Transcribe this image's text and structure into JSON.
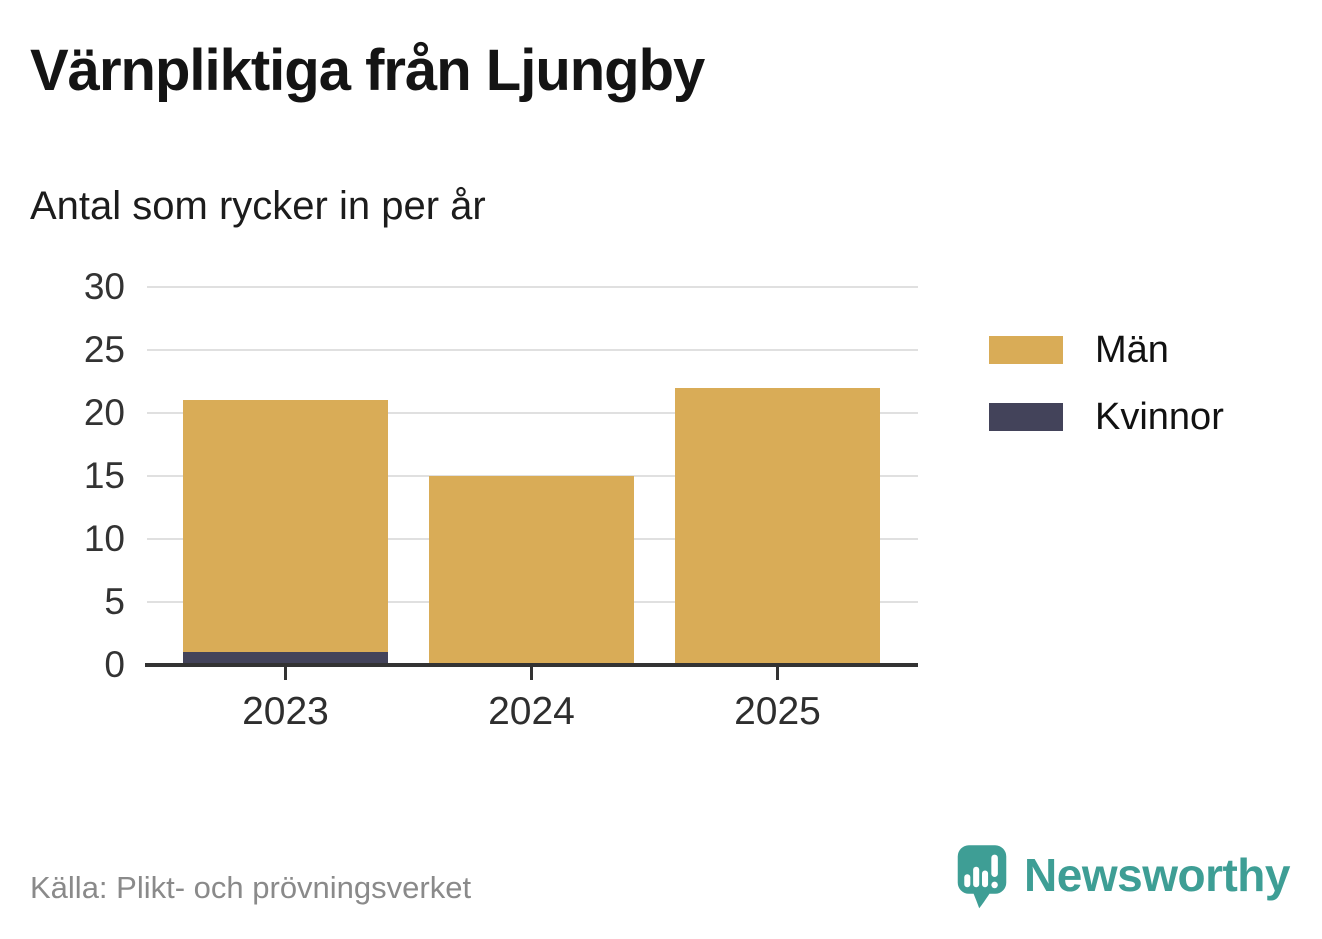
{
  "header": {
    "title": "Värnpliktiga från Ljungby",
    "subtitle": "Antal som rycker in per år"
  },
  "chart_data": {
    "type": "bar",
    "stacked": true,
    "title": "Värnpliktiga från Ljungby",
    "subtitle": "Antal som rycker in per år",
    "categories": [
      "2023",
      "2024",
      "2025"
    ],
    "series": [
      {
        "name": "Män",
        "color": "#d9ac57",
        "values": [
          20,
          15,
          22
        ]
      },
      {
        "name": "Kvinnor",
        "color": "#43435a",
        "values": [
          1,
          0,
          0
        ]
      }
    ],
    "totals": [
      21,
      15,
      22
    ],
    "xlabel": "",
    "ylabel": "",
    "ylim": [
      0,
      30
    ],
    "yticks": [
      0,
      5,
      10,
      15,
      20,
      25,
      30
    ],
    "grid": true,
    "legend_position": "right"
  },
  "legend": {
    "items": [
      {
        "label": "Män",
        "color": "#d9ac57"
      },
      {
        "label": "Kvinnor",
        "color": "#43435a"
      }
    ]
  },
  "footer": {
    "source": "Källa: Plikt- och prövningsverket",
    "brand": "Newsworthy",
    "brand_color": "#3e9e95"
  }
}
